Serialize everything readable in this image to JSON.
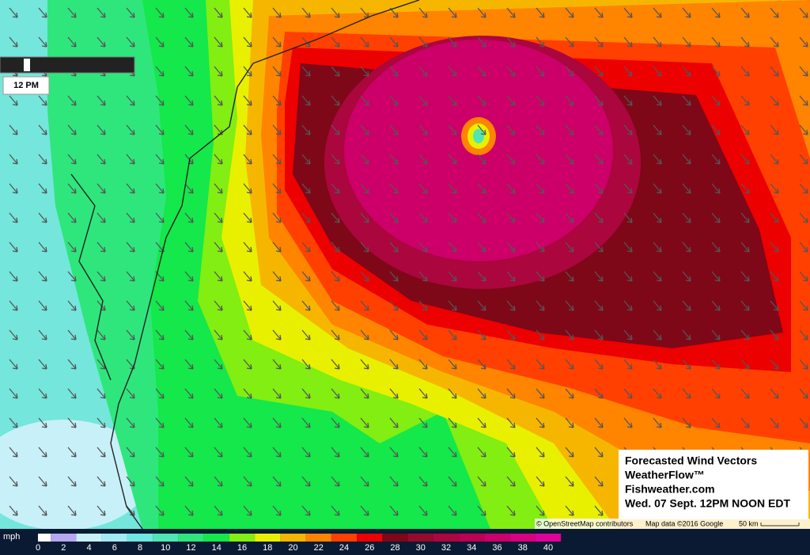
{
  "time_slider": {
    "label": "12 PM"
  },
  "legend": {
    "unit": "mph",
    "ticks": [
      0,
      2,
      4,
      6,
      8,
      10,
      12,
      14,
      16,
      18,
      20,
      22,
      24,
      26,
      28,
      30,
      32,
      34,
      36,
      38,
      40
    ],
    "colors": [
      "#ffffff",
      "#b6a8f0",
      "#c8f0f8",
      "#a2ebf4",
      "#70e6e2",
      "#4fe6b4",
      "#2fe67c",
      "#14e84a",
      "#82ee12",
      "#e8f000",
      "#f6b600",
      "#ff8400",
      "#ff4000",
      "#ec0000",
      "#7e0818",
      "#960a2c",
      "#ab063e",
      "#bd0052",
      "#cc0068",
      "#d8007f",
      "#e0009a"
    ]
  },
  "info_box": {
    "lines": [
      "Forecasted Wind Vectors",
      "WeatherFlow™",
      "Fishweather.com",
      "Wed. 07 Sept. 12PM NOON EDT"
    ]
  },
  "attribution": {
    "osm": "© OpenStreetMap contributors",
    "google": "Map data ©2016 Google",
    "scale": "50 km"
  }
}
